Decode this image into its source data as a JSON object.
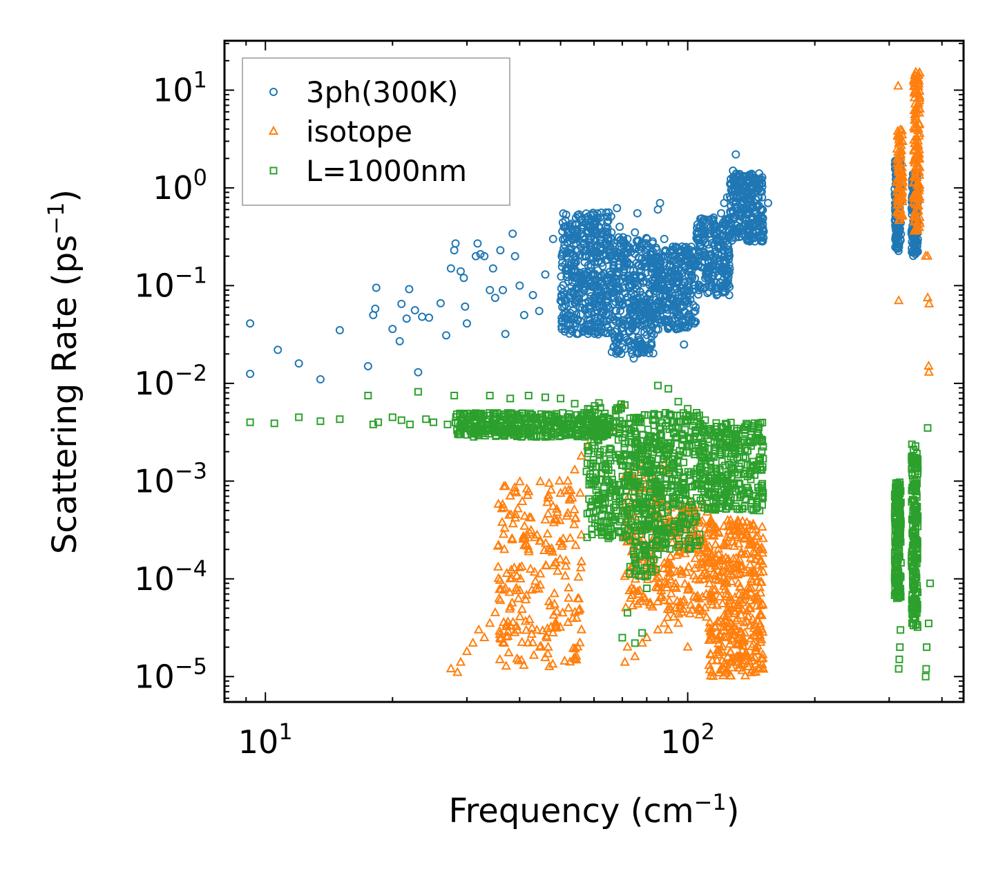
{
  "chart_data": {
    "type": "scatter",
    "title": "",
    "xlabel": "Frequency (cm",
    "xlabel_sup": "−1",
    "xlabel_end": ")",
    "ylabel": "Scattering Rate (ps",
    "ylabel_sup": "−1",
    "ylabel_end": ")",
    "xscale": "log",
    "yscale": "log",
    "xlim": [
      8,
      450
    ],
    "ylim": [
      5.5e-06,
      32
    ],
    "x_ticks": [
      {
        "value": 10,
        "base": "10",
        "exp": "1"
      },
      {
        "value": 100,
        "base": "10",
        "exp": "2"
      }
    ],
    "y_ticks": [
      {
        "value": 10,
        "base": "10",
        "exp": "1"
      },
      {
        "value": 1,
        "base": "10",
        "exp": "0"
      },
      {
        "value": 0.1,
        "base": "10",
        "exp": "−1"
      },
      {
        "value": 0.01,
        "base": "10",
        "exp": "−2"
      },
      {
        "value": 0.001,
        "base": "10",
        "exp": "−3"
      },
      {
        "value": 0.0001,
        "base": "10",
        "exp": "−4"
      },
      {
        "value": 1e-05,
        "base": "10",
        "exp": "−5"
      }
    ],
    "legend_position": "top-left",
    "series": [
      {
        "name": "3ph(300K)",
        "marker": "circle",
        "color": "#1f77b4",
        "points": [
          [
            9.2,
            0.041
          ],
          [
            9.2,
            0.0125
          ],
          [
            10.7,
            0.022
          ],
          [
            12,
            0.016
          ],
          [
            13.5,
            0.011
          ],
          [
            15,
            0.035
          ],
          [
            17.5,
            0.015
          ],
          [
            18,
            0.05
          ],
          [
            18.2,
            0.058
          ],
          [
            18.3,
            0.095
          ],
          [
            20,
            0.036
          ],
          [
            20.8,
            0.027
          ],
          [
            21,
            0.065
          ],
          [
            21.6,
            0.046
          ],
          [
            21.9,
            0.092
          ],
          [
            22.6,
            0.056
          ],
          [
            23,
            0.013
          ],
          [
            23.5,
            0.048
          ],
          [
            24.4,
            0.047
          ],
          [
            26,
            0.066
          ],
          [
            26.8,
            0.031
          ],
          [
            27.5,
            0.15
          ],
          [
            28,
            0.23
          ],
          [
            28.2,
            0.27
          ],
          [
            29,
            0.14
          ],
          [
            29.5,
            0.12
          ],
          [
            29.7,
            0.061
          ],
          [
            30,
            0.041
          ],
          [
            31.5,
            0.2
          ],
          [
            31.8,
            0.27
          ],
          [
            32.3,
            0.21
          ],
          [
            33,
            0.2
          ],
          [
            34,
            0.09
          ],
          [
            34.6,
            0.15
          ],
          [
            35,
            0.075
          ],
          [
            36,
            0.23
          ],
          [
            36.5,
            0.09
          ],
          [
            37,
            0.032
          ],
          [
            38.5,
            0.34
          ],
          [
            39,
            0.2
          ],
          [
            40,
            0.1
          ],
          [
            41,
            0.05
          ],
          [
            43,
            0.08
          ],
          [
            44.5,
            0.055
          ],
          [
            46,
            0.13
          ],
          [
            48,
            0.3
          ],
          [
            50,
            0.07
          ],
          [
            52,
            0.35
          ],
          [
            54,
            0.12
          ],
          [
            55,
            0.045
          ],
          [
            57,
            0.3
          ],
          [
            58,
            0.04
          ],
          [
            60,
            0.42
          ],
          [
            61,
            0.2
          ],
          [
            62,
            0.3
          ],
          [
            63,
            0.1
          ],
          [
            64,
            0.4
          ],
          [
            65,
            0.56
          ],
          [
            66,
            0.35
          ],
          [
            67,
            0.22
          ],
          [
            68,
            0.62
          ],
          [
            69,
            0.4
          ],
          [
            70,
            0.2
          ],
          [
            71,
            0.12
          ],
          [
            72,
            0.3
          ],
          [
            73,
            0.05
          ],
          [
            74,
            0.03
          ],
          [
            74.5,
            0.018
          ],
          [
            75,
            0.35
          ],
          [
            76,
            0.55
          ],
          [
            77,
            0.25
          ],
          [
            78,
            0.08
          ],
          [
            79,
            0.04
          ],
          [
            80,
            0.2
          ],
          [
            82,
            0.15
          ],
          [
            84,
            0.1
          ],
          [
            85,
            0.6
          ],
          [
            86,
            0.7
          ],
          [
            87,
            0.06
          ],
          [
            88,
            0.3
          ],
          [
            90,
            0.12
          ],
          [
            92,
            0.04
          ],
          [
            93,
            0.2
          ],
          [
            95,
            0.11
          ],
          [
            97,
            0.06
          ],
          [
            98,
            0.025
          ],
          [
            100,
            0.2
          ],
          [
            102,
            0.25
          ],
          [
            104,
            0.1
          ],
          [
            106,
            0.3
          ],
          [
            108,
            0.2
          ],
          [
            110,
            0.35
          ],
          [
            112,
            0.15
          ],
          [
            115,
            0.4
          ],
          [
            118,
            0.3
          ],
          [
            120,
            0.55
          ],
          [
            122,
            0.7
          ],
          [
            124,
            0.8
          ],
          [
            126,
            1.1
          ],
          [
            128,
            1.5
          ],
          [
            130,
            2.2
          ],
          [
            132,
            1.3
          ],
          [
            135,
            1.0
          ],
          [
            140,
            0.9
          ],
          [
            145,
            1.2
          ],
          [
            150,
            0.8
          ],
          [
            155,
            0.7
          ]
        ],
        "dense_bands": [
          {
            "xlog": [
              1.7,
              1.82
            ],
            "ylog": [
              -1.5,
              -0.25
            ],
            "n": 450
          },
          {
            "xlog": [
              1.82,
              1.92
            ],
            "ylog": [
              -1.7,
              -0.5
            ],
            "n": 350
          },
          {
            "xlog": [
              1.92,
              2.02
            ],
            "ylog": [
              -1.45,
              -0.6
            ],
            "n": 300
          },
          {
            "xlog": [
              2.02,
              2.1
            ],
            "ylog": [
              -1.1,
              -0.3
            ],
            "n": 220
          },
          {
            "xlog": [
              2.1,
              2.18
            ],
            "ylog": [
              -0.55,
              0.15
            ],
            "n": 250
          },
          {
            "xlog": [
              2.49,
              2.505
            ],
            "ylog": [
              -0.65,
              0.3
            ],
            "n": 140
          },
          {
            "xlog": [
              2.53,
              2.545
            ],
            "ylog": [
              -0.7,
              0.15
            ],
            "n": 140
          }
        ]
      },
      {
        "name": "isotope",
        "marker": "triangle",
        "color": "#ff7f0e",
        "points": [
          [
            27.5,
            1.2e-05
          ],
          [
            28.5,
            1.1e-05
          ],
          [
            29,
            1.4e-05
          ],
          [
            30,
            1.8e-05
          ],
          [
            31,
            2.2e-05
          ],
          [
            32,
            3e-05
          ],
          [
            33,
            2.5e-05
          ],
          [
            34,
            3.5e-05
          ],
          [
            35,
            4.5e-05
          ],
          [
            36,
            6e-05
          ],
          [
            37,
            8e-05
          ],
          [
            38,
            0.0001
          ],
          [
            40,
            0.00013
          ],
          [
            42,
            0.0002
          ],
          [
            44,
            0.00028
          ],
          [
            46,
            0.0004
          ],
          [
            48,
            0.00055
          ],
          [
            50,
            0.00075
          ],
          [
            52,
            0.001
          ],
          [
            54,
            0.0013
          ],
          [
            56,
            0.0018
          ],
          [
            58,
            0.0023
          ],
          [
            60,
            0.003
          ],
          [
            62,
            0.0036
          ],
          [
            64,
            0.004
          ],
          [
            66,
            0.0035
          ],
          [
            68,
            0.0055
          ],
          [
            70,
            0.006
          ],
          [
            71,
            1.4e-05
          ],
          [
            72,
            2e-05
          ],
          [
            75,
            1.6e-05
          ],
          [
            78,
            2.2e-05
          ],
          [
            80,
            2.5e-05
          ],
          [
            85,
            3e-05
          ],
          [
            88,
            3.5e-05
          ],
          [
            90,
            3e-05
          ],
          [
            95,
            3.5e-05
          ],
          [
            100,
            2e-05
          ],
          [
            315,
            11
          ],
          [
            316,
            0.07
          ],
          [
            370,
            0.075
          ],
          [
            372,
            0.015
          ],
          [
            372.5,
            0.013
          ],
          [
            370,
            0.2
          ],
          [
            373,
            0.065
          ],
          [
            366,
            0.2
          ]
        ],
        "dense_bands": [
          {
            "xlog": [
              1.55,
              1.75
            ],
            "ylog": [
              -4.9,
              -3.0
            ],
            "n": 220
          },
          {
            "xlog": [
              1.85,
              1.95
            ],
            "ylog": [
              -4.3,
              -2.8
            ],
            "n": 150
          },
          {
            "xlog": [
              1.95,
              2.05
            ],
            "ylog": [
              -4.4,
              -3.2
            ],
            "n": 160
          },
          {
            "xlog": [
              2.05,
              2.18
            ],
            "ylog": [
              -5.0,
              -3.4
            ],
            "n": 400
          },
          {
            "xlog": [
              2.495,
              2.51
            ],
            "ylog": [
              -0.35,
              0.6
            ],
            "n": 90
          },
          {
            "xlog": [
              2.535,
              2.55
            ],
            "ylog": [
              -0.45,
              1.2
            ],
            "n": 140
          }
        ]
      },
      {
        "name": "L=1000nm",
        "marker": "square",
        "color": "#2ca02c",
        "points": [
          [
            9.2,
            0.004
          ],
          [
            10.5,
            0.0039
          ],
          [
            12,
            0.0045
          ],
          [
            13.5,
            0.0041
          ],
          [
            15,
            0.0043
          ],
          [
            17.5,
            0.0075
          ],
          [
            18,
            0.0038
          ],
          [
            18.5,
            0.004
          ],
          [
            20,
            0.0045
          ],
          [
            21,
            0.0042
          ],
          [
            22,
            0.0038
          ],
          [
            23,
            0.0082
          ],
          [
            24,
            0.0043
          ],
          [
            25,
            0.004
          ],
          [
            27,
            0.0038
          ],
          [
            28,
            0.0075
          ],
          [
            29,
            0.0036
          ],
          [
            30,
            0.0042
          ],
          [
            32,
            0.0045
          ],
          [
            34,
            0.0075
          ],
          [
            36,
            0.0043
          ],
          [
            38,
            0.007
          ],
          [
            40,
            0.0042
          ],
          [
            42,
            0.0075
          ],
          [
            44,
            0.0045
          ],
          [
            46,
            0.0072
          ],
          [
            48,
            0.004
          ],
          [
            50,
            0.007
          ],
          [
            52,
            0.0035
          ],
          [
            54,
            0.0062
          ],
          [
            56,
            0.003
          ],
          [
            58,
            0.0055
          ],
          [
            60,
            0.0025
          ],
          [
            62,
            0.002
          ],
          [
            64,
            0.0015
          ],
          [
            66,
            0.0012
          ],
          [
            68,
            0.0005
          ],
          [
            70,
            2.5e-05
          ],
          [
            72,
            4.5e-05
          ],
          [
            75,
            2.2e-05
          ],
          [
            78,
            2.8e-05
          ],
          [
            80,
            8e-05
          ],
          [
            85,
            0.0095
          ],
          [
            90,
            0.0088
          ],
          [
            95,
            0.0065
          ],
          [
            100,
            0.0055
          ],
          [
            105,
            0.005
          ],
          [
            110,
            0.0042
          ],
          [
            120,
            0.0035
          ],
          [
            130,
            0.0025
          ],
          [
            140,
            0.0012
          ],
          [
            148,
            0.0005
          ],
          [
            150,
            0.0009
          ],
          [
            316,
            1.2e-05
          ],
          [
            317,
            1.5e-05
          ],
          [
            318,
            2e-05
          ],
          [
            319,
            3e-05
          ],
          [
            366,
            1e-05
          ],
          [
            367,
            1.2e-05
          ],
          [
            368,
            2e-05
          ],
          [
            372,
            3.5e-05
          ],
          [
            375,
            9e-05
          ],
          [
            370,
            0.0035
          ]
        ],
        "dense_bands": [
          {
            "xlog": [
              1.45,
              1.82
            ],
            "ylog": [
              -2.55,
              -2.3
            ],
            "n": 400
          },
          {
            "xlog": [
              1.76,
              1.86
            ],
            "ylog": [
              -3.6,
              -2.2
            ],
            "n": 220
          },
          {
            "xlog": [
              1.86,
              1.93
            ],
            "ylog": [
              -4.0,
              -2.3
            ],
            "n": 250
          },
          {
            "xlog": [
              1.93,
              2.03
            ],
            "ylog": [
              -3.7,
              -2.3
            ],
            "n": 250
          },
          {
            "xlog": [
              2.03,
              2.18
            ],
            "ylog": [
              -3.3,
              -2.4
            ],
            "n": 320
          },
          {
            "xlog": [
              2.49,
              2.505
            ],
            "ylog": [
              -4.2,
              -3.0
            ],
            "n": 180
          },
          {
            "xlog": [
              2.53,
              2.545
            ],
            "ylog": [
              -4.5,
              -2.6
            ],
            "n": 200
          }
        ]
      }
    ]
  }
}
